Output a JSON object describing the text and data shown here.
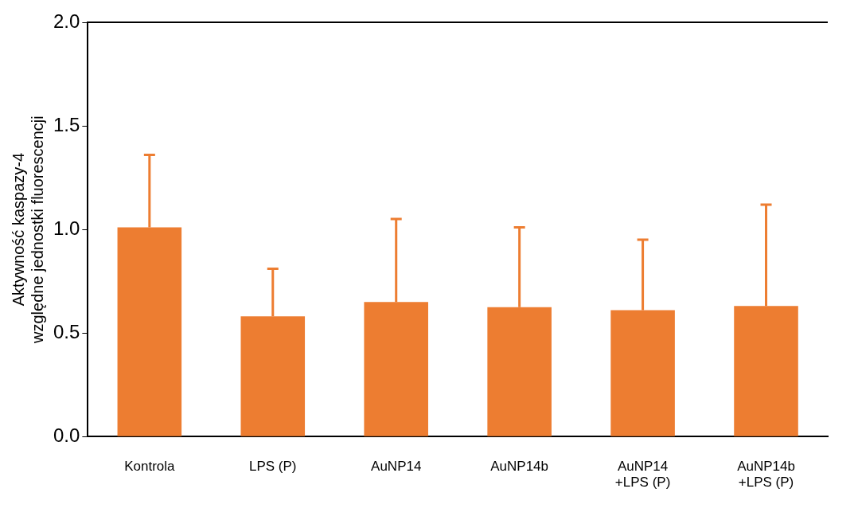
{
  "chart_data": {
    "type": "bar",
    "ylabel": "Aktywność kaspazy-4\nwzględne jednostki fluorescencji",
    "categories": [
      "Kontrola",
      "LPS (P)",
      "AuNP14",
      "AuNP14b",
      "AuNP14\n+LPS (P)",
      "AuNP14b\n+LPS (P)"
    ],
    "values": [
      1.01,
      0.58,
      0.65,
      0.625,
      0.61,
      0.63
    ],
    "errors": [
      [
        1.01,
        1.36
      ],
      [
        0.58,
        0.81
      ],
      [
        0.65,
        1.05
      ],
      [
        0.625,
        1.01
      ],
      [
        0.61,
        0.95
      ],
      [
        0.63,
        1.12
      ]
    ],
    "color": "#ed7d31",
    "ylim": [
      0,
      2
    ],
    "yticks": [
      {
        "value": 0,
        "label": "0.0"
      },
      {
        "value": 0.5,
        "label": "0.5"
      },
      {
        "value": 1,
        "label": "1.0"
      },
      {
        "value": 1.5,
        "label": "1.5"
      },
      {
        "value": 2,
        "label": "2.0"
      }
    ],
    "grid": false,
    "legend": false
  }
}
